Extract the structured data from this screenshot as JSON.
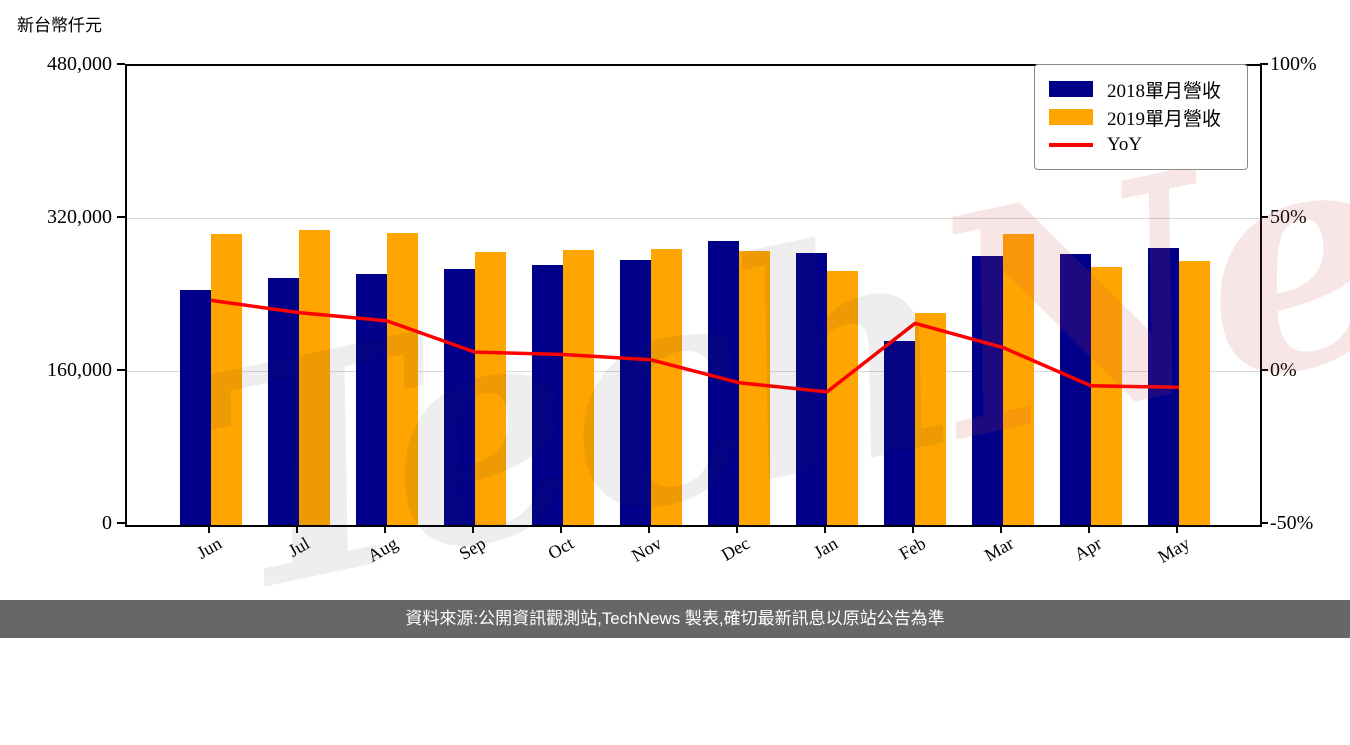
{
  "axis_title": "新台幣仟元",
  "watermark": {
    "part1": "Tech",
    "part2": "News"
  },
  "legend": {
    "items": [
      {
        "label": "2018單月營收",
        "color": "#00008B",
        "swatch": "bar"
      },
      {
        "label": "2019單月營收",
        "color": "#FFA500",
        "swatch": "bar"
      },
      {
        "label": "YoY",
        "color": "#FF0000",
        "swatch": "line"
      }
    ]
  },
  "footer": "資料來源:公開資訊觀測站,TechNews 製表,確切最新訊息以原站公告為準",
  "chart_data": {
    "type": "bar",
    "title": "新台幣仟元",
    "categories": [
      "Jun",
      "Jul",
      "Aug",
      "Sep",
      "Oct",
      "Nov",
      "Dec",
      "Jan",
      "Feb",
      "Mar",
      "Apr",
      "May"
    ],
    "series": [
      {
        "name": "2018單月營收",
        "type": "bar",
        "color": "#00008B",
        "axis": "left",
        "values": [
          246000,
          258000,
          262000,
          268000,
          272000,
          277000,
          297000,
          284000,
          192000,
          281000,
          283000,
          290000
        ]
      },
      {
        "name": "2019單月營收",
        "type": "bar",
        "color": "#FFA500",
        "axis": "left",
        "values": [
          304000,
          309000,
          305000,
          285000,
          288000,
          289000,
          287000,
          266000,
          222000,
          304000,
          270000,
          276000
        ]
      },
      {
        "name": "YoY",
        "type": "line",
        "color": "#FF0000",
        "axis": "right",
        "values": [
          23.4,
          19.4,
          16.7,
          6.5,
          5.7,
          4.0,
          -3.5,
          -6.5,
          15.9,
          8.0,
          -4.5,
          -5.0
        ]
      }
    ],
    "left_axis": {
      "label": "新台幣仟元",
      "min": 0,
      "max": 480000,
      "tick_values": [
        0,
        160000,
        320000,
        480000
      ]
    },
    "right_axis": {
      "min": -50,
      "max": 100,
      "tick_values": [
        -50,
        0,
        50,
        100
      ],
      "tick_suffix": "%"
    },
    "grid_values": [
      160000,
      320000
    ],
    "grid": "horizontal",
    "legend_position": "upper right"
  }
}
